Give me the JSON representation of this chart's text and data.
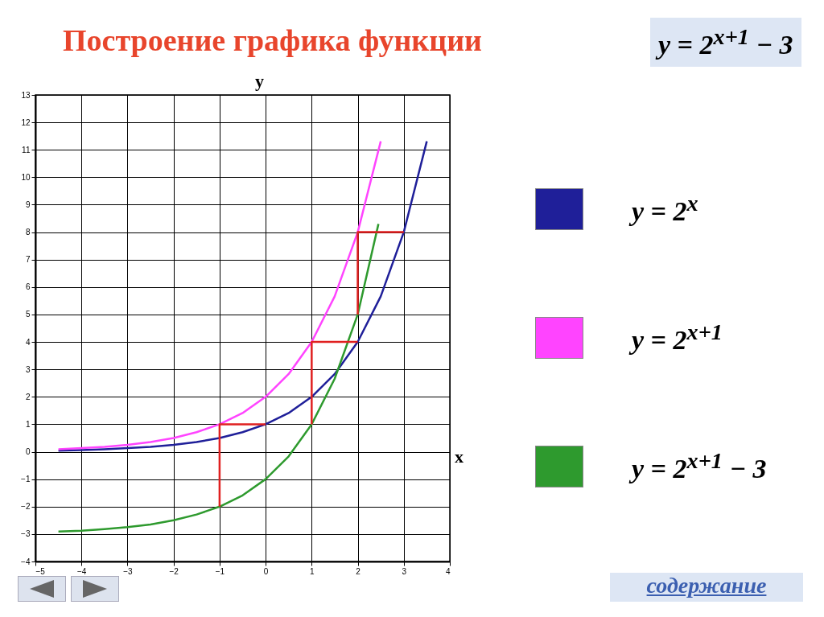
{
  "chart_data": {
    "type": "line",
    "title": "Построение графика функции",
    "subtitle": "y = 2$^{x+1}$ − 3",
    "xlabel": "x",
    "ylabel": "y",
    "xlim": [
      -5,
      4
    ],
    "ylim": [
      -4,
      13
    ],
    "xticks": [
      -5,
      -4,
      -3,
      -2,
      -1,
      0,
      1,
      2,
      3,
      4
    ],
    "yticks": [
      -4,
      -3,
      -2,
      -1,
      0,
      1,
      2,
      3,
      4,
      5,
      6,
      7,
      8,
      9,
      10,
      11,
      12,
      13
    ],
    "grid": true,
    "legend": "right",
    "marker": "none",
    "line_style": "solid",
    "series": [
      {
        "name": "y = 2$^{x}$",
        "color": "#1f1f99",
        "x": [
          -4.5,
          -4,
          -3.5,
          -3,
          -2.5,
          -2,
          -1.5,
          -1,
          -0.5,
          0,
          0.5,
          1,
          1.5,
          2,
          2.5,
          3,
          3.5
        ],
        "values": [
          0.04,
          0.06,
          0.09,
          0.13,
          0.18,
          0.25,
          0.35,
          0.5,
          0.71,
          1,
          1.41,
          2,
          2.83,
          4,
          5.66,
          8,
          11.31
        ]
      },
      {
        "name": "y = 2$^{x+1}$",
        "color": "#ff44ff",
        "x": [
          -4.5,
          -4,
          -3.5,
          -3,
          -2.5,
          -2,
          -1.5,
          -1,
          -0.5,
          0,
          0.5,
          1,
          1.5,
          2,
          2.5
        ],
        "values": [
          0.09,
          0.13,
          0.18,
          0.25,
          0.35,
          0.5,
          0.71,
          1,
          1.41,
          2,
          2.83,
          4,
          5.66,
          8,
          11.31
        ]
      },
      {
        "name": "y = 2$^{x+1}$ − 3",
        "color": "#2e9a2e",
        "x": [
          -4.5,
          -4,
          -3.5,
          -3,
          -2.5,
          -2,
          -1.5,
          -1,
          -0.5,
          0,
          0.5,
          1,
          1.5,
          2,
          2.45
        ],
        "values": [
          -2.91,
          -2.88,
          -2.82,
          -2.75,
          -2.65,
          -2.5,
          -2.29,
          -2,
          -1.59,
          -1,
          -0.17,
          1,
          2.66,
          5,
          8.3
        ]
      },
      {
        "color": "#e02020",
        "x": [
          0,
          -1,
          -1
        ],
        "values": [
          1,
          1,
          -2
        ]
      },
      {
        "color": "#e02020",
        "x": [
          2,
          1,
          1
        ],
        "values": [
          4,
          4,
          1
        ]
      },
      {
        "color": "#e02020",
        "x": [
          3,
          2,
          2
        ],
        "values": [
          8,
          8,
          5
        ]
      }
    ],
    "annotations": [
      "содержание"
    ]
  }
}
